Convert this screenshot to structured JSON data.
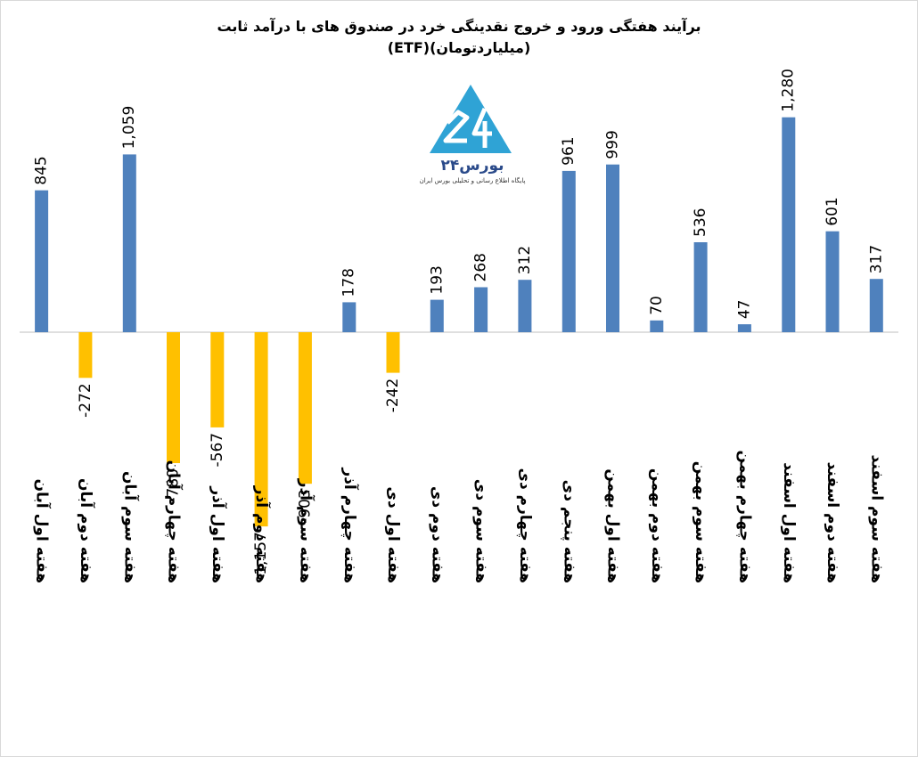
{
  "logo": {
    "text": "بورس۲۴",
    "subtitle": "پایگاه اطلاع رسانی و تحلیلی بورس ایران"
  },
  "colors": {
    "positive": "#4F81BD",
    "negative": "#FFC000"
  },
  "chart_data": {
    "type": "bar",
    "title": "برآیند هفتگی ورود و خروج نقدینگی خرد در صندوق های با درآمد ثابت",
    "subtitle": "(ETF)(میلیاردتومان)",
    "categories": [
      "هفته اول آبان",
      "هفته دوم آبان",
      "هفته سوم آبان",
      "هفته چهارم آبان",
      "هفته اول آذر",
      "هفته دوم آذر",
      "هفته سوم آذر",
      "هفته چهارم آذر",
      "هفته اول دی",
      "هفته دوم دی",
      "هفته سوم دی",
      "هفته چهارم دی",
      "هفته پنجم دی",
      "هفته اول بهمن",
      "هفته دوم بهمن",
      "هفته سوم بهمن",
      "هفته چهارم بهمن",
      "هفته اول اسفند",
      "هفته دوم اسفند",
      "هفته سوم اسفند"
    ],
    "values": [
      845,
      -272,
      1059,
      -780,
      -567,
      -1157,
      -903,
      178,
      -242,
      193,
      268,
      312,
      961,
      999,
      70,
      536,
      47,
      1280,
      601,
      317
    ],
    "value_labels": [
      "845",
      "-272",
      "1,059",
      "-780",
      "-567",
      "-1,157",
      "-903",
      "178",
      "-242",
      "193",
      "268",
      "312",
      "961",
      "999",
      "70",
      "536",
      "47",
      "1,280",
      "601",
      "317"
    ],
    "ylim": [
      -1500,
      1500
    ],
    "grid": false,
    "legend": "none"
  }
}
